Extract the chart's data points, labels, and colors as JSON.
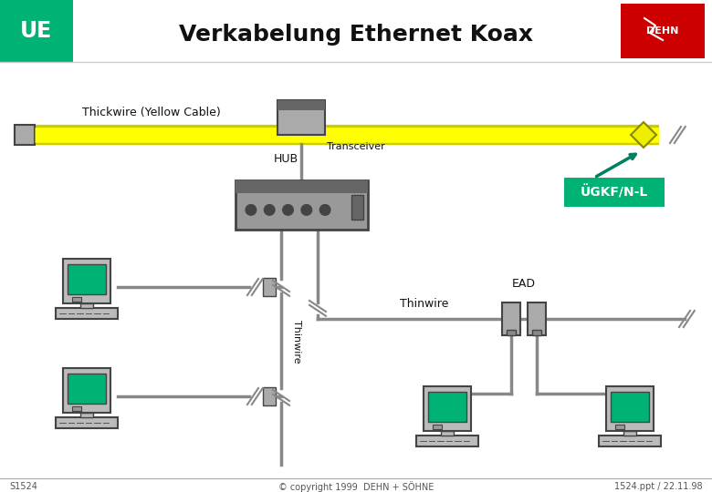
{
  "title": "Verkabelung Ethernet Koax",
  "ue_label": "UE",
  "ue_color": "#00B374",
  "background_color": "#FFFFFF",
  "thickwire_label": "Thickwire (Yellow Cable)",
  "thickwire_color": "#FFFF00",
  "transceiver_label": "Transceiver",
  "hub_label": "HUB",
  "thinwire_label": "Thinwire",
  "ead_label": "EAD",
  "ugkf_label": "ÜGKF/N-L",
  "ugkf_color": "#00B374",
  "footer_left": "S1524",
  "footer_center": "© copyright 1999  DEHN + SÖHNE",
  "footer_right": "1524.ppt / 22.11.98",
  "gray_light": "#BBBBBB",
  "gray_mid": "#888888",
  "gray_dark": "#444444",
  "teal_screen": "#00B374"
}
